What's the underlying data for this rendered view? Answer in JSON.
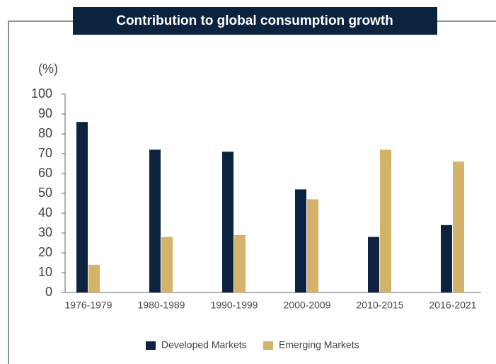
{
  "chart_data": {
    "type": "bar",
    "title": "Contribution to global consumption growth",
    "y_unit": "(%)",
    "categories": [
      "1976-1979",
      "1980-1989",
      "1990-1999",
      "2000-2009",
      "2010-2015",
      "2016-2021"
    ],
    "series": [
      {
        "name": "Developed Markets",
        "color": "#0c2340",
        "values": [
          86,
          72,
          71,
          52,
          28,
          34
        ]
      },
      {
        "name": "Emerging Markets",
        "color": "#d4b26a",
        "values": [
          14,
          28,
          29,
          47,
          72,
          66
        ]
      }
    ],
    "ylim": [
      0,
      100
    ],
    "yticks": [
      0,
      10,
      20,
      30,
      40,
      50,
      60,
      70,
      80,
      90,
      100
    ],
    "grid": false
  }
}
